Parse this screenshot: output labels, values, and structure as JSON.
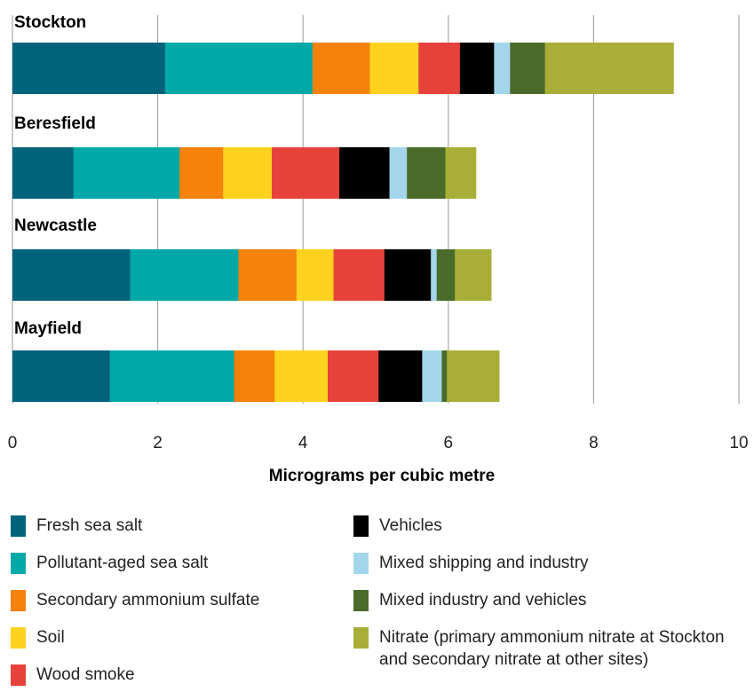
{
  "chart_data": {
    "type": "bar",
    "orientation": "horizontal",
    "stacked": true,
    "title": "",
    "xlabel": "Micrograms per cubic metre",
    "ylabel": "",
    "xlim": [
      0,
      10
    ],
    "xticks": [
      "0",
      "2",
      "4",
      "6",
      "8",
      "10"
    ],
    "grid": true,
    "legend_position": "bottom",
    "categories": [
      "Stockton",
      "Beresfield",
      "Newcastle",
      "Mayfield"
    ],
    "series": [
      {
        "name": "Fresh sea salt",
        "color": "#00637c",
        "values": [
          2.1,
          0.84,
          1.62,
          1.34
        ]
      },
      {
        "name": "Pollutant-aged sea salt",
        "color": "#00a8a8",
        "values": [
          2.03,
          1.46,
          1.49,
          1.71
        ]
      },
      {
        "name": "Secondary ammonium sulfate",
        "color": "#f5820a",
        "values": [
          0.79,
          0.6,
          0.8,
          0.56
        ]
      },
      {
        "name": "Soil",
        "color": "#ffd21f",
        "values": [
          0.67,
          0.67,
          0.51,
          0.73
        ]
      },
      {
        "name": "Wood smoke",
        "color": "#e6423b",
        "values": [
          0.57,
          0.93,
          0.7,
          0.7
        ]
      },
      {
        "name": "Vehicles",
        "color": "#000000",
        "values": [
          0.47,
          0.69,
          0.64,
          0.6
        ]
      },
      {
        "name": "Mixed shipping and industry",
        "color": "#a3d6ea",
        "values": [
          0.22,
          0.24,
          0.08,
          0.27
        ]
      },
      {
        "name": "Mixed industry and vehicles",
        "color": "#4a6b2a",
        "values": [
          0.48,
          0.53,
          0.25,
          0.07
        ]
      },
      {
        "name": "Nitrate (primary ammonium nitrate at Stockton and secondary nitrate at other sites)",
        "color": "#a9ae38",
        "values": [
          1.77,
          0.42,
          0.5,
          0.72
        ]
      }
    ]
  },
  "legend": {
    "left_column": [
      {
        "label": "Fresh sea salt",
        "color": "#00637c"
      },
      {
        "label": "Pollutant-aged sea salt",
        "color": "#00a8a8"
      },
      {
        "label": "Secondary ammonium sulfate",
        "color": "#f5820a"
      },
      {
        "label": "Soil",
        "color": "#ffd21f"
      },
      {
        "label": "Wood smoke",
        "color": "#e6423b"
      }
    ],
    "right_column": [
      {
        "label": "Vehicles",
        "color": "#000000"
      },
      {
        "label": "Mixed shipping and industry",
        "color": "#a3d6ea"
      },
      {
        "label": "Mixed industry and vehicles",
        "color": "#4a6b2a"
      },
      {
        "label": "Nitrate (primary ammonium nitrate at Stockton and secondary nitrate at other sites)",
        "color": "#a9ae38"
      }
    ]
  }
}
